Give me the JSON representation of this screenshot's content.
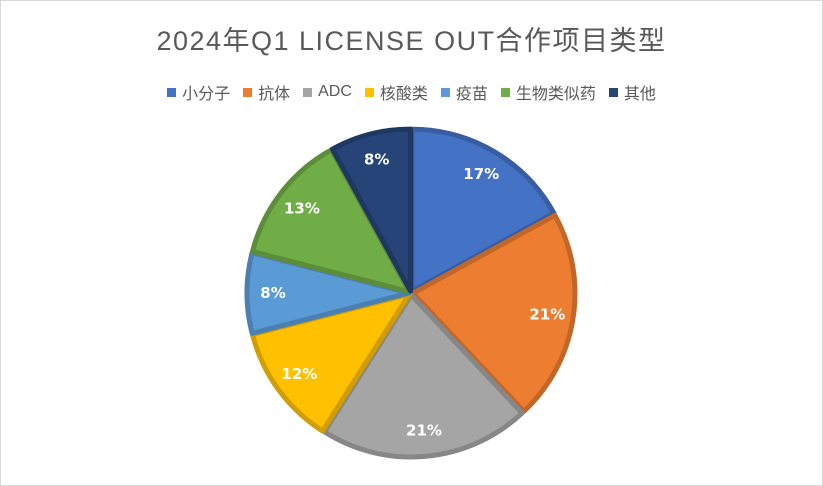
{
  "chart_data": {
    "type": "pie",
    "title": "2024年Q1 LICENSE OUT合作项目类型",
    "categories": [
      "小分子",
      "抗体",
      "ADC",
      "核酸类",
      "疫苗",
      "生物类似药",
      "其他"
    ],
    "values": [
      17,
      21,
      21,
      12,
      8,
      13,
      8
    ],
    "labels": [
      "17%",
      "21%",
      "21%",
      "12%",
      "8%",
      "13%",
      "8%"
    ],
    "colors": [
      "#4472C4",
      "#ED7D31",
      "#A5A5A5",
      "#FFC000",
      "#5B9BD5",
      "#70AD47",
      "#264478"
    ],
    "legend_position": "top",
    "start_angle": "12 o'clock, clockwise"
  }
}
